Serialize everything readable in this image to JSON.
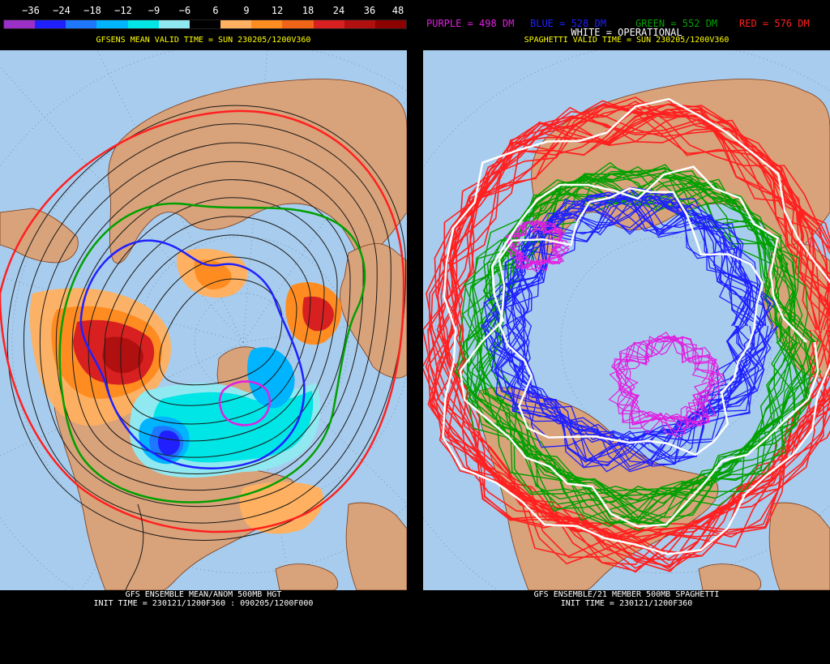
{
  "left": {
    "colorbar": {
      "ticks": [
        "−36",
        "−24",
        "−18",
        "−12",
        "−9",
        "−6",
        "6",
        "9",
        "12",
        "18",
        "24",
        "36",
        "48"
      ],
      "colors": [
        "#9a30c8",
        "#2020ff",
        "#1e78ff",
        "#00b4ff",
        "#00e5e5",
        "#90e8f0",
        "#000000",
        "#ffb060",
        "#ff8c20",
        "#f06418",
        "#d82020",
        "#b01010",
        "#8c0000"
      ]
    },
    "valid_time": "GFSENS MEAN VALID TIME = SUN 230205/1200V360",
    "bottom_line1": "GFS ENSEMBLE MEAN/ANOM 500MB HGT",
    "bottom_line2": "INIT TIME = 230121/1200F360 : 090205/1200F000"
  },
  "right": {
    "legend": {
      "purple": "PURPLE = 498 DM",
      "blue": "BLUE = 528 DM",
      "green": "GREEN = 552 DM",
      "red": "RED = 576 DM",
      "white": "WHITE = OPERATIONAL"
    },
    "legend_colors": {
      "purple": "#e020e0",
      "blue": "#2020ff",
      "green": "#00a000",
      "red": "#ff2020",
      "white": "#ffffff"
    },
    "valid_time": "SPAGHETTI VALID TIME = SUN 230205/1200V360",
    "bottom_line1": "GFS ENSEMBLE/21 MEMBER 500MB SPAGHETTI",
    "bottom_line2": "INIT TIME = 230121/1200F360"
  },
  "map_colors": {
    "ocean": "#a8cced",
    "land": "#d8a27a",
    "coast": "#7a3a18"
  }
}
